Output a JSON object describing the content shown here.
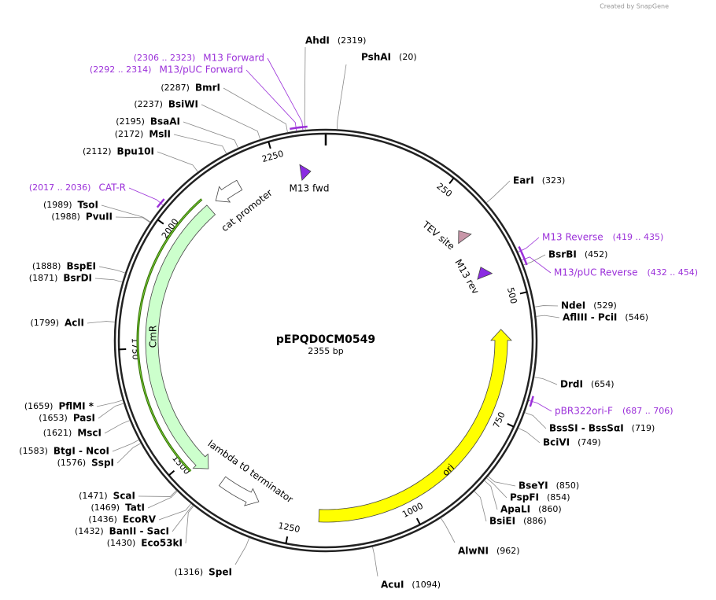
{
  "header": {
    "credit": "Created by SnapGene"
  },
  "plasmid": {
    "name": "pEPQD0CM0549",
    "length": "2355 bp",
    "ring_ticks": [
      250,
      500,
      750,
      1000,
      1250,
      1500,
      1750,
      2000,
      2250
    ]
  },
  "enzymes": [
    {
      "name": "AhdI",
      "position": "(2319)"
    },
    {
      "name": "PshAI",
      "position": "(20)"
    },
    {
      "name": "EarI",
      "position": "(323)"
    },
    {
      "name": "BsrBI",
      "position": "(452)"
    },
    {
      "name": "NdeI",
      "position": "(529)"
    },
    {
      "name": "AflIII - PciI",
      "position": "(546)"
    },
    {
      "name": "DrdI",
      "position": "(654)"
    },
    {
      "name": "BssSI - BssSαI",
      "position": "(719)"
    },
    {
      "name": "BciVI",
      "position": "(749)"
    },
    {
      "name": "BseYI",
      "position": "(850)"
    },
    {
      "name": "PspFI",
      "position": "(854)"
    },
    {
      "name": "ApaLI",
      "position": "(860)"
    },
    {
      "name": "BsiEI",
      "position": "(886)"
    },
    {
      "name": "AlwNI",
      "position": "(962)"
    },
    {
      "name": "AcuI",
      "position": "(1094)"
    },
    {
      "name": "SpeI",
      "position": "(1316)"
    },
    {
      "name": "Eco53kI",
      "position": "(1430)"
    },
    {
      "name": "BanII - SacI",
      "position": "(1432)"
    },
    {
      "name": "EcoRV",
      "position": "(1436)"
    },
    {
      "name": "TatI",
      "position": "(1469)"
    },
    {
      "name": "ScaI",
      "position": "(1471)"
    },
    {
      "name": "SspI",
      "position": "(1576)"
    },
    {
      "name": "BtgI - NcoI",
      "position": "(1583)"
    },
    {
      "name": "MscI",
      "position": "(1621)"
    },
    {
      "name": "PasI",
      "position": "(1653)"
    },
    {
      "name": "PflMI *",
      "position": "(1659)"
    },
    {
      "name": "AclI",
      "position": "(1799)"
    },
    {
      "name": "BsrDI",
      "position": "(1871)"
    },
    {
      "name": "BspEI",
      "position": "(1888)"
    },
    {
      "name": "PvuII",
      "position": "(1988)"
    },
    {
      "name": "TsoI",
      "position": "(1989)"
    },
    {
      "name": "Bpu10I",
      "position": "(2112)"
    },
    {
      "name": "MslI",
      "position": "(2172)"
    },
    {
      "name": "BsaAI",
      "position": "(2195)"
    },
    {
      "name": "BsiWI",
      "position": "(2237)"
    },
    {
      "name": "BmrI",
      "position": "(2287)"
    }
  ],
  "primers": [
    {
      "name": "M13 Forward",
      "range": "(2306 .. 2323)"
    },
    {
      "name": "M13/pUC Forward",
      "range": "(2292 .. 2314)"
    },
    {
      "name": "CAT-R",
      "range": "(2017 .. 2036)"
    },
    {
      "name": "M13 Reverse",
      "range": "(419 .. 435)"
    },
    {
      "name": "M13/pUC Reverse",
      "range": "(432 .. 454)"
    },
    {
      "name": "pBR322ori-F",
      "range": "(687 .. 706)"
    }
  ],
  "features": [
    {
      "name": "CmR"
    },
    {
      "name": "cat promoter"
    },
    {
      "name": "lambda t0 terminator"
    },
    {
      "name": "ori"
    },
    {
      "name": "M13 fwd"
    },
    {
      "name": "TEV site"
    },
    {
      "name": "M13 rev"
    }
  ]
}
